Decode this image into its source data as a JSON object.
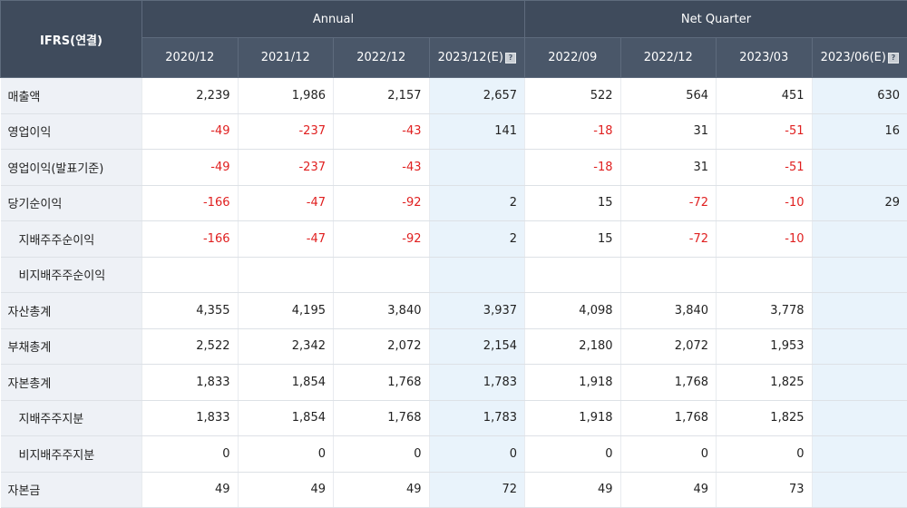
{
  "header": {
    "corner": "IFRS(연결)",
    "group_annual": "Annual",
    "group_quarter": "Net Quarter",
    "periods": [
      "2020/12",
      "2021/12",
      "2022/12",
      "2023/12(E)",
      "2022/09",
      "2022/12",
      "2023/03",
      "2023/06(E)"
    ]
  },
  "colors": {
    "negative": "#e02020",
    "header_bg": "#4a5769",
    "estimate_bg": "#e9f3fb"
  },
  "rows": [
    {
      "label": "매출액",
      "values": [
        "2,239",
        "1,986",
        "2,157",
        "2,657",
        "522",
        "564",
        "451",
        "630"
      ]
    },
    {
      "label": "영업이익",
      "values": [
        "-49",
        "-237",
        "-43",
        "141",
        "-18",
        "31",
        "-51",
        "16"
      ]
    },
    {
      "label": "영업이익(발표기준)",
      "values": [
        "-49",
        "-237",
        "-43",
        "",
        "-18",
        "31",
        "-51",
        ""
      ]
    },
    {
      "label": "당기순이익",
      "values": [
        "-166",
        "-47",
        "-92",
        "2",
        "15",
        "-72",
        "-10",
        "29"
      ]
    },
    {
      "label": "지배주주순이익",
      "values": [
        "-166",
        "-47",
        "-92",
        "2",
        "15",
        "-72",
        "-10",
        ""
      ]
    },
    {
      "label": "비지배주주순이익",
      "values": [
        "",
        "",
        "",
        "",
        "",
        "",
        "",
        ""
      ]
    },
    {
      "label": "자산총계",
      "values": [
        "4,355",
        "4,195",
        "3,840",
        "3,937",
        "4,098",
        "3,840",
        "3,778",
        ""
      ]
    },
    {
      "label": "부채총계",
      "values": [
        "2,522",
        "2,342",
        "2,072",
        "2,154",
        "2,180",
        "2,072",
        "1,953",
        ""
      ]
    },
    {
      "label": "자본총계",
      "values": [
        "1,833",
        "1,854",
        "1,768",
        "1,783",
        "1,918",
        "1,768",
        "1,825",
        ""
      ]
    },
    {
      "label": "지배주주지분",
      "values": [
        "1,833",
        "1,854",
        "1,768",
        "1,783",
        "1,918",
        "1,768",
        "1,825",
        ""
      ]
    },
    {
      "label": "비지배주주지분",
      "values": [
        "0",
        "0",
        "0",
        "0",
        "0",
        "0",
        "0",
        ""
      ]
    },
    {
      "label": "자본금",
      "values": [
        "49",
        "49",
        "49",
        "72",
        "49",
        "49",
        "73",
        ""
      ]
    }
  ]
}
